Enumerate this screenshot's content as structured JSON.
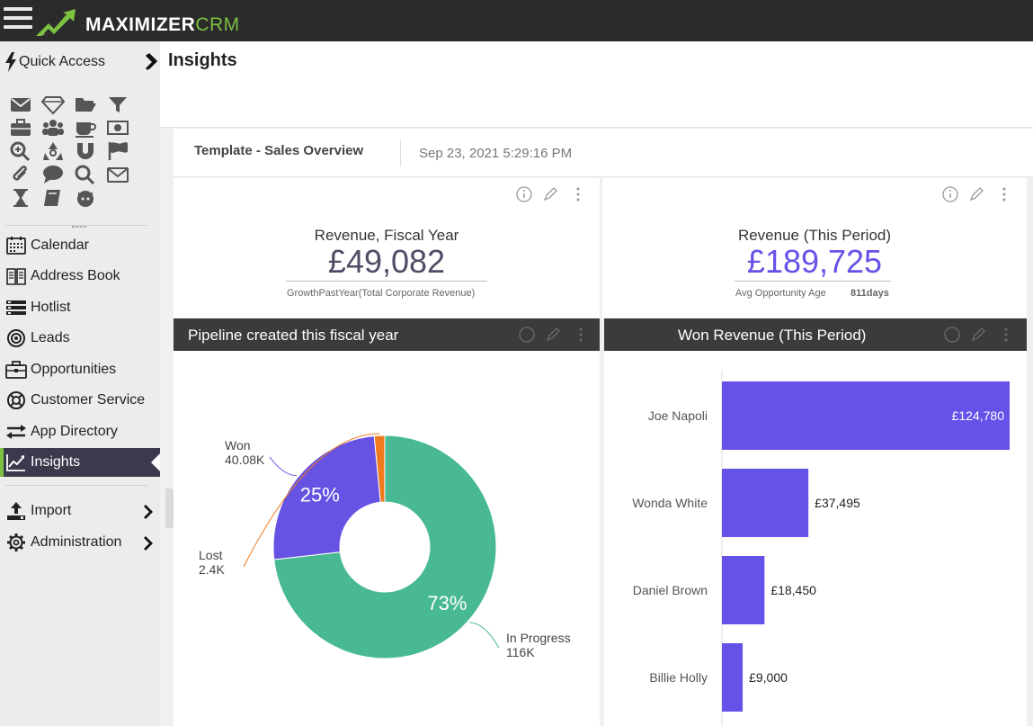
{
  "app": {
    "brand_main": "MAXIMIZER",
    "brand_sub": "CRM",
    "accent": "#7cc142"
  },
  "sidebar": {
    "quick_access_label": "Quick Access",
    "quick_icons": [
      "mail-icon",
      "diamond-icon",
      "folder-icon",
      "filter-icon",
      "briefcase-icon",
      "group-icon",
      "coffee-icon",
      "money-icon",
      "zoom-in-icon",
      "recycle-icon",
      "magnet-icon",
      "flag-icon",
      "paperclip-icon",
      "chat-icon",
      "search-icon",
      "envelope-icon",
      "hourglass-icon",
      "book-icon",
      "github-icon"
    ],
    "items": [
      {
        "label": "Calendar",
        "icon": "calendar-icon"
      },
      {
        "label": "Address Book",
        "icon": "address-book-icon"
      },
      {
        "label": "Hotlist",
        "icon": "hotlist-icon"
      },
      {
        "label": "Leads",
        "icon": "leads-icon"
      },
      {
        "label": "Opportunities",
        "icon": "briefcase-icon"
      },
      {
        "label": "Customer Service",
        "icon": "lifebuoy-icon"
      },
      {
        "label": "App Directory",
        "icon": "swap-arrows-icon"
      },
      {
        "label": "Insights",
        "icon": "chart-line-icon",
        "active": true
      },
      {
        "label": "Import",
        "icon": "upload-icon"
      },
      {
        "label": "Administration",
        "icon": "gear-icon"
      }
    ]
  },
  "page": {
    "title": "Insights"
  },
  "dashboard": {
    "template_name": "Template - Sales Overview",
    "timestamp": "Sep 23, 2021 5:29:16 PM"
  },
  "kpis": [
    {
      "title": "Revenue, Fiscal Year",
      "value": "£49,082",
      "value_color": "#4d4d66",
      "sub_label": "GrowthPastYear(Total Corporate Revenue)",
      "sub_value": ""
    },
    {
      "title": "Revenue (This Period)",
      "value": "£189,725",
      "value_color": "#6552e8",
      "sub_label": "Avg Opportunity Age",
      "sub_value": "811days"
    }
  ],
  "panels": {
    "pipeline_title": "Pipeline created this fiscal year",
    "won_title": "Won Revenue (This Period)"
  },
  "chart_data": [
    {
      "type": "pie",
      "title": "Pipeline created this fiscal year",
      "donut": true,
      "slices": [
        {
          "name": "In Progress",
          "value": 116000,
          "value_label": "116K",
          "percent_label": "73%",
          "color": "#48b993"
        },
        {
          "name": "Won",
          "value": 40080,
          "value_label": "40.08K",
          "percent_label": "25%",
          "color": "#6653e3"
        },
        {
          "name": "Lost",
          "value": 2400,
          "value_label": "2.4K",
          "percent_label": "",
          "color": "#f07a1e"
        }
      ]
    },
    {
      "type": "bar",
      "orientation": "horizontal",
      "title": "Won Revenue (This Period)",
      "categories": [
        "Joe Napoli",
        "Wonda White",
        "Daniel Brown",
        "Billie Holly"
      ],
      "values": [
        124780,
        37495,
        18450,
        9000
      ],
      "value_labels": [
        "£124,780",
        "£37,495",
        "£18,450",
        "£9,000"
      ],
      "color": "#6552e8",
      "xlim": [
        0,
        124780
      ]
    }
  ]
}
